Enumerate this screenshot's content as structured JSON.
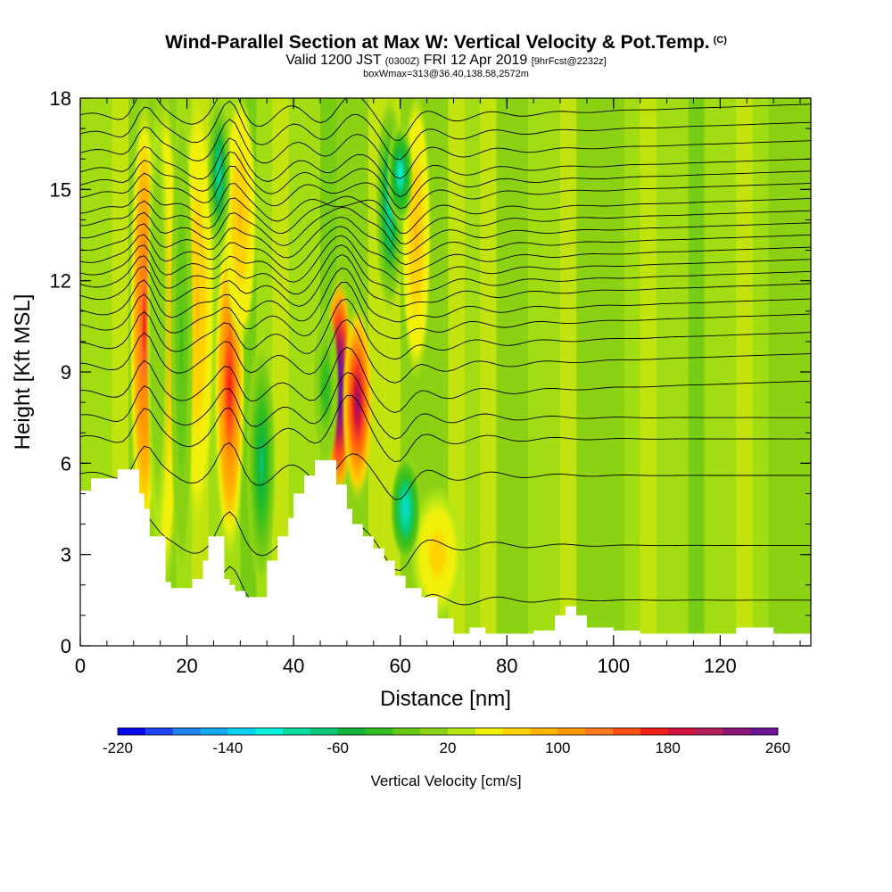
{
  "header": {
    "title": "Wind-Parallel Section at Max W: Vertical Velocity & Pot.Temp.",
    "title_mark": "(C)",
    "subtitle_a": "Valid 1200 JST",
    "subtitle_b": "(0300Z)",
    "subtitle_c": "FRI 12 Apr 2019",
    "subtitle_d": "[9hrFcst@2232z]",
    "subtitle2": "boxWmax=313@36.40,138.58,2572m"
  },
  "chart_data": {
    "type": "heatmap",
    "xlabel": "Distance [nm]",
    "ylabel": "Height [Kft MSL]",
    "xlim": [
      0,
      137
    ],
    "ylim": [
      0,
      18
    ],
    "x_ticks": [
      0,
      20,
      40,
      60,
      80,
      100,
      120
    ],
    "y_ticks": [
      0,
      3,
      6,
      9,
      12,
      15,
      18
    ],
    "grid": false,
    "colorbar": {
      "label": "Vertical Velocity [cm/s]",
      "placement": "bottom",
      "tick_labels": [
        "-220",
        "-140",
        "-60",
        "20",
        "100",
        "180",
        "260"
      ],
      "colors": [
        "#0a0af0",
        "#1e46f5",
        "#1e82f0",
        "#14aaf0",
        "#0ad2f0",
        "#0af0dc",
        "#0adca0",
        "#0ac878",
        "#14b43c",
        "#32be1e",
        "#64c814",
        "#8cd214",
        "#b4e614",
        "#f0f00a",
        "#ffd200",
        "#ffb400",
        "#ff9600",
        "#ff781e",
        "#ff5014",
        "#f01e14",
        "#d2143c",
        "#b41e5a",
        "#8c1478",
        "#6e1496"
      ]
    },
    "terrain_kft": {
      "x": [
        0,
        2,
        5,
        7,
        10,
        11,
        12,
        13,
        16,
        17,
        19,
        21,
        23,
        24,
        26,
        27,
        28,
        29,
        31,
        33,
        35,
        37,
        39,
        40,
        42,
        44,
        45,
        48,
        50,
        51,
        53,
        55,
        57,
        59,
        61,
        64,
        67,
        70,
        73,
        76,
        80,
        85,
        89,
        91,
        93,
        95,
        100,
        105,
        110,
        115,
        120,
        123,
        126,
        128,
        130,
        132,
        135,
        137
      ],
      "y": [
        5.1,
        5.5,
        5.5,
        5.8,
        5.8,
        5.0,
        4.5,
        3.6,
        2.1,
        1.9,
        1.9,
        2.2,
        2.8,
        3.6,
        3.6,
        2.2,
        2.0,
        1.8,
        1.6,
        1.6,
        2.8,
        3.6,
        4.2,
        5.0,
        5.6,
        6.1,
        6.1,
        5.3,
        4.5,
        4.0,
        3.6,
        3.2,
        2.8,
        2.3,
        1.9,
        1.6,
        0.9,
        0.4,
        0.6,
        0.4,
        0.4,
        0.5,
        1.0,
        1.3,
        1.0,
        0.6,
        0.5,
        0.4,
        0.4,
        0.4,
        0.4,
        0.6,
        0.6,
        0.6,
        0.4,
        0.4,
        0.4,
        0.4
      ]
    },
    "updraft_columns": [
      {
        "x": 12,
        "w": 2.2,
        "zlo": 3,
        "zhi": 18,
        "value": 140
      },
      {
        "x": 16,
        "w": 2.0,
        "zlo": 2,
        "zhi": 18,
        "value": 80
      },
      {
        "x": 22,
        "w": 2.5,
        "zlo": 4,
        "zhi": 18,
        "value": 60
      },
      {
        "x": 28,
        "w": 2.3,
        "zlo": 3,
        "zhi": 14,
        "value": 150
      },
      {
        "x": 30,
        "w": 2.5,
        "zlo": 10,
        "zhi": 18,
        "value": 60
      },
      {
        "x": 48.5,
        "w": 2.2,
        "zlo": 5,
        "zhi": 12,
        "value": 310
      },
      {
        "x": 52,
        "w": 2.3,
        "zlo": 5,
        "zhi": 11,
        "value": 200
      },
      {
        "x": 63,
        "w": 2.2,
        "zlo": 9,
        "zhi": 18,
        "value": 60
      },
      {
        "x": 67,
        "w": 4.0,
        "zlo": 1,
        "zhi": 5,
        "value": 50
      }
    ],
    "downdraft_columns": [
      {
        "x": 14.5,
        "w": 1.6,
        "zlo": 3,
        "zhi": 18,
        "value": -20
      },
      {
        "x": 19,
        "w": 1.8,
        "zlo": 2,
        "zhi": 18,
        "value": -50
      },
      {
        "x": 26,
        "w": 1.8,
        "zlo": 13,
        "zhi": 18,
        "value": -110
      },
      {
        "x": 34,
        "w": 2.2,
        "zlo": 2,
        "zhi": 10,
        "value": -100
      },
      {
        "x": 46,
        "w": 2.0,
        "zlo": 6,
        "zhi": 11,
        "value": -60
      },
      {
        "x": 58,
        "w": 2.2,
        "zlo": 11,
        "zhi": 18,
        "value": -110
      },
      {
        "x": 61,
        "w": 2.3,
        "zlo": 3,
        "zhi": 6,
        "value": -150
      },
      {
        "x": 60,
        "w": 2.0,
        "zlo": 14,
        "zhi": 17,
        "value": -130
      }
    ],
    "isentrope_base_kft": [
      1.5,
      3.3,
      5.6,
      6.8,
      7.5,
      8.3,
      9.2,
      9.9,
      10.5,
      11.0,
      11.5,
      11.9,
      12.3,
      12.7,
      13.1,
      13.5,
      13.9,
      14.3,
      14.8,
      15.2,
      15.6,
      16.2,
      16.8,
      17.4
    ]
  }
}
